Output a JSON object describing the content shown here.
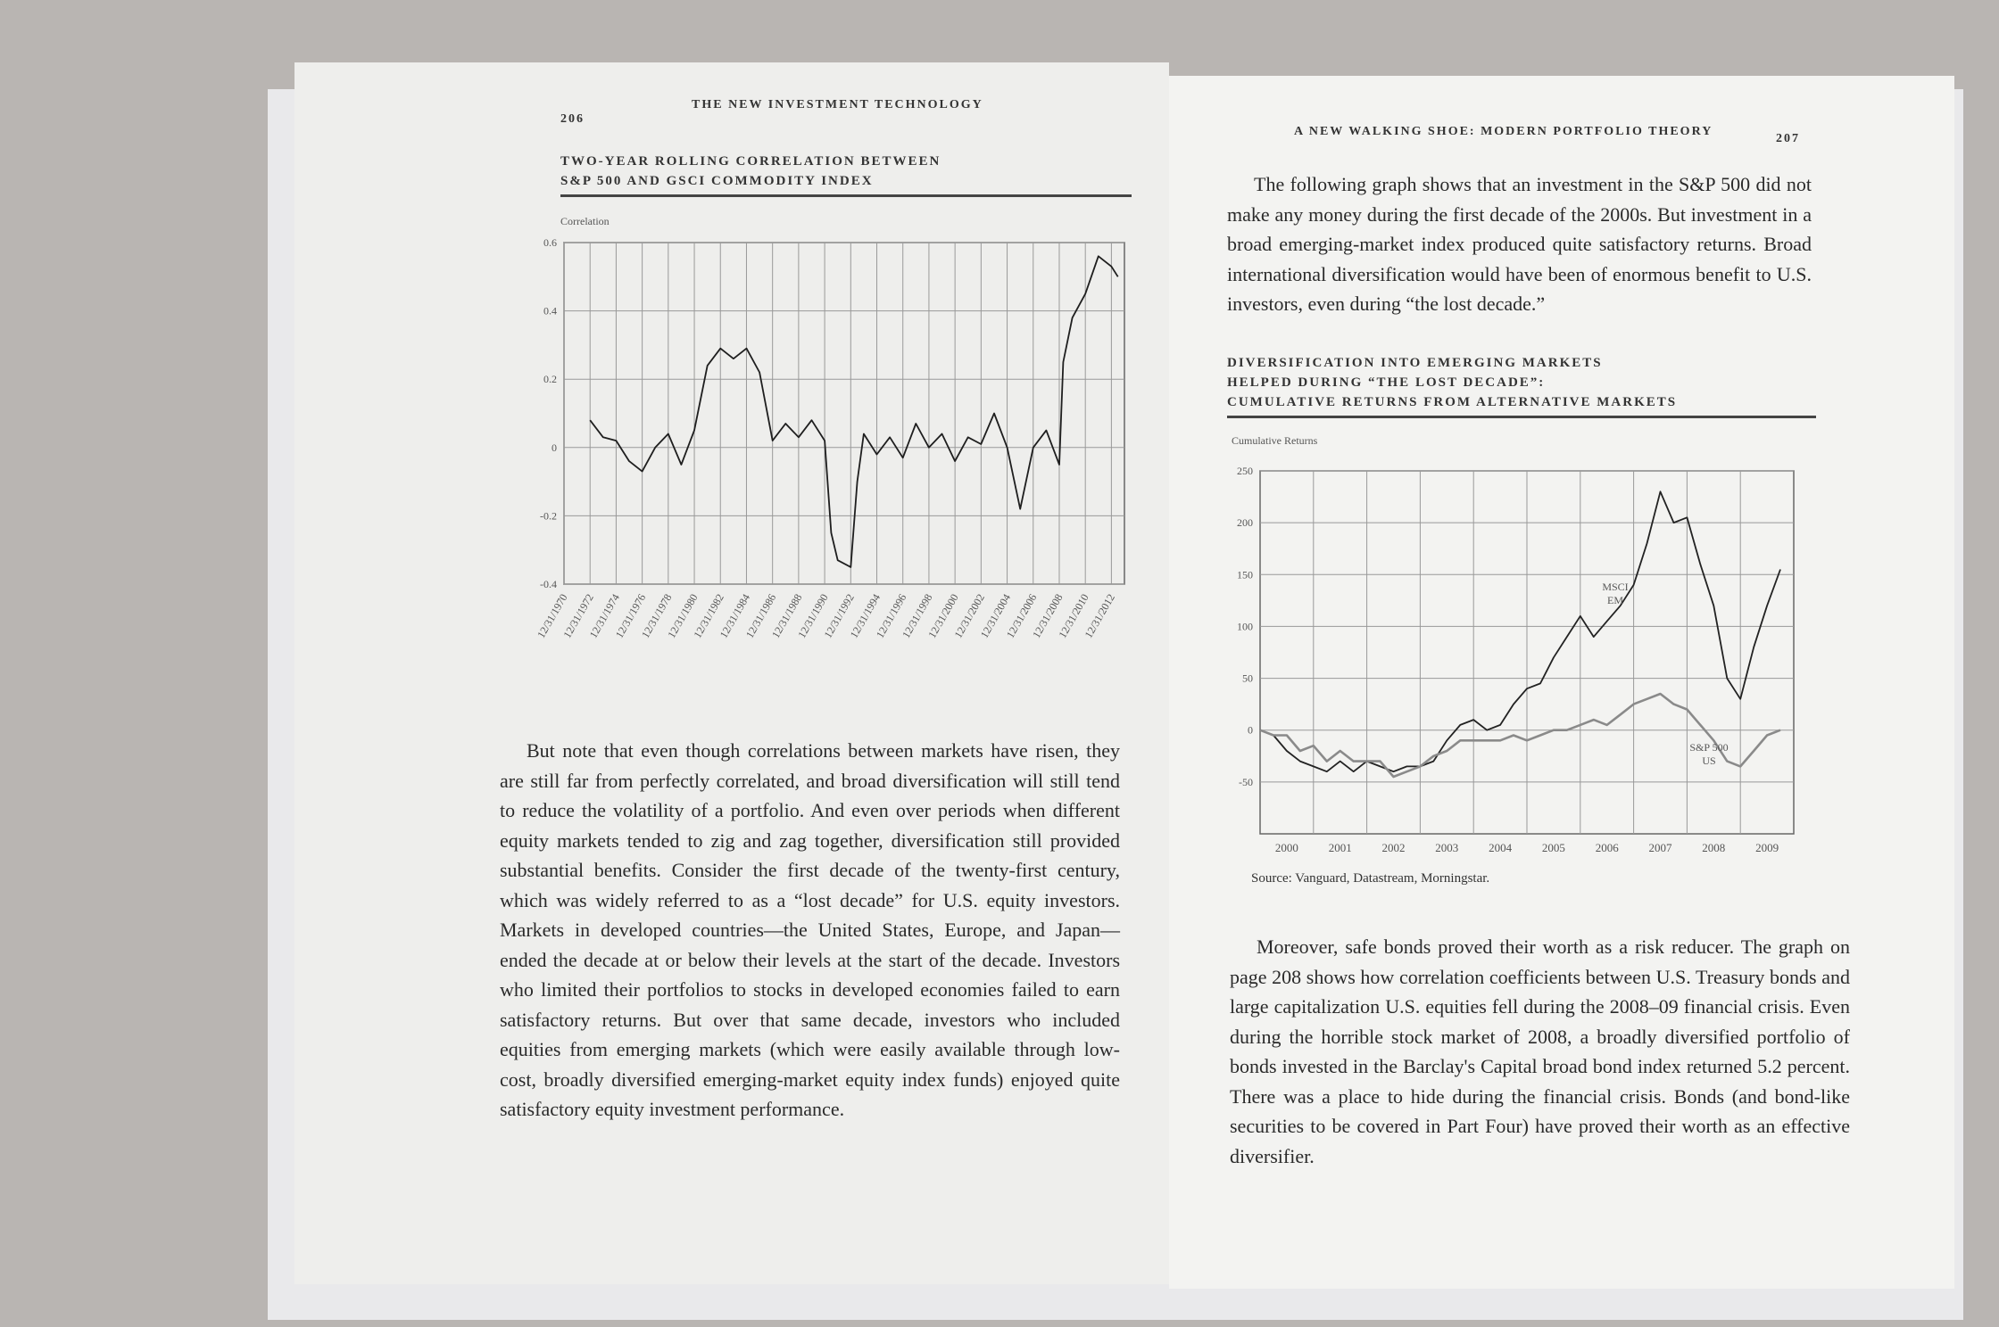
{
  "left_page": {
    "page_number": "206",
    "running_head": "THE NEW INVESTMENT TECHNOLOGY",
    "body": "But note that even though correlations between markets have risen, they are still far from perfectly correlated, and broad diversification will still tend to reduce the volatility of a portfolio. And even over periods when different equity markets tended to zig and zag together, diversification still provided substantial benefits. Consider the first decade of the twenty-first century, which was widely referred to as a “lost decade” for U.S. equity investors. Markets in developed countries—the United States, Europe, and Japan—ended the decade at or below their levels at the start of the decade. Investors who limited their portfolios to stocks in developed economies failed to earn satisfactory returns. But over that same decade, investors who included equities from emerging markets (which were easily available through low-cost, broadly diversified emerging-market equity index funds) enjoyed quite satisfactory equity investment performance."
  },
  "right_page": {
    "page_number": "207",
    "running_head": "A NEW WALKING SHOE: MODERN PORTFOLIO THEORY",
    "body_top": "The following graph shows that an investment in the S&P 500 did not make any money during the first decade of the 2000s. But investment in a broad emerging-market index produced quite satisfactory returns. Broad international diversification would have been of enormous benefit to U.S. investors, even during “the lost decade.”",
    "source": "Source: Vanguard, Datastream, Morningstar.",
    "body_bottom": "Moreover, safe bonds proved their worth as a risk reducer. The graph on page 208 shows how correlation coefficients between U.S. Treasury bonds and large capitalization U.S. equities fell during the 2008–09 financial crisis. Even during the horrible stock market of 2008, a broadly diversified portfolio of bonds invested in the Barclay's Capital broad bond index returned 5.2 percent. There was a place to hide during the financial crisis. Bonds (and bond-like securities to be covered in Part Four) have proved their worth as an effective diversifier."
  },
  "chart_data": [
    {
      "type": "line",
      "title": [
        "TWO-YEAR ROLLING CORRELATION BETWEEN",
        "S&P 500 AND GSCI COMMODITY INDEX"
      ],
      "y_label": "Correlation",
      "x": [
        1972,
        1973,
        1974,
        1975,
        1976,
        1977,
        1978,
        1979,
        1980,
        1981,
        1982,
        1983,
        1984,
        1985,
        1986,
        1987,
        1988,
        1989,
        1990,
        1990.5,
        1991,
        1992,
        1992.5,
        1993,
        1994,
        1995,
        1996,
        1997,
        1998,
        1999,
        2000,
        2001,
        2002,
        2003,
        2004,
        2005,
        2006,
        2007,
        2008,
        2008.3,
        2009,
        2010,
        2011,
        2012,
        2012.5
      ],
      "values": [
        0.08,
        0.03,
        0.02,
        -0.04,
        -0.07,
        0.0,
        0.04,
        -0.05,
        0.05,
        0.24,
        0.29,
        0.26,
        0.29,
        0.22,
        0.02,
        0.07,
        0.03,
        0.08,
        0.02,
        -0.25,
        -0.33,
        -0.35,
        -0.1,
        0.04,
        -0.02,
        0.03,
        -0.03,
        0.07,
        0.0,
        0.04,
        -0.04,
        0.03,
        0.01,
        0.1,
        0.0,
        -0.18,
        0.0,
        0.05,
        -0.05,
        0.25,
        0.38,
        0.45,
        0.56,
        0.53,
        0.5
      ],
      "color": "#1e1e1e",
      "xlim": [
        1970,
        2013
      ],
      "xticks": [
        {
          "value": 1970,
          "label": "12/31/1970"
        },
        {
          "value": 1972,
          "label": "12/31/1972"
        },
        {
          "value": 1974,
          "label": "12/31/1974"
        },
        {
          "value": 1976,
          "label": "12/31/1976"
        },
        {
          "value": 1978,
          "label": "12/31/1978"
        },
        {
          "value": 1980,
          "label": "12/31/1980"
        },
        {
          "value": 1982,
          "label": "12/31/1982"
        },
        {
          "value": 1984,
          "label": "12/31/1984"
        },
        {
          "value": 1986,
          "label": "12/31/1986"
        },
        {
          "value": 1988,
          "label": "12/31/1988"
        },
        {
          "value": 1990,
          "label": "12/31/1990"
        },
        {
          "value": 1992,
          "label": "12/31/1992"
        },
        {
          "value": 1994,
          "label": "12/31/1994"
        },
        {
          "value": 1996,
          "label": "12/31/1996"
        },
        {
          "value": 1998,
          "label": "12/31/1998"
        },
        {
          "value": 2000,
          "label": "12/31/2000"
        },
        {
          "value": 2002,
          "label": "12/31/2002"
        },
        {
          "value": 2004,
          "label": "12/31/2004"
        },
        {
          "value": 2006,
          "label": "12/31/2006"
        },
        {
          "value": 2008,
          "label": "12/31/2008"
        },
        {
          "value": 2010,
          "label": "12/31/2010"
        },
        {
          "value": 2012,
          "label": "12/31/2012"
        }
      ],
      "ylim": [
        -0.4,
        0.6
      ],
      "yticks": [
        -0.4,
        -0.2,
        0,
        0.2,
        0.4,
        0.6
      ],
      "grid": true
    },
    {
      "type": "line",
      "title": [
        "DIVERSIFICATION INTO EMERGING MARKETS",
        "HELPED DURING “THE LOST DECADE”:",
        "CUMULATIVE RETURNS FROM ALTERNATIVE MARKETS"
      ],
      "y_label": "Cumulative Returns",
      "categories": [
        "2000",
        "2001",
        "2002",
        "2003",
        "2004",
        "2005",
        "2006",
        "2007",
        "2008",
        "2009"
      ],
      "x": [
        2000,
        2000.25,
        2000.5,
        2000.75,
        2001,
        2001.25,
        2001.5,
        2001.75,
        2002,
        2002.25,
        2002.5,
        2002.75,
        2003,
        2003.25,
        2003.5,
        2003.75,
        2004,
        2004.25,
        2004.5,
        2004.75,
        2005,
        2005.25,
        2005.5,
        2005.75,
        2006,
        2006.25,
        2006.5,
        2006.75,
        2007,
        2007.25,
        2007.5,
        2007.75,
        2008,
        2008.25,
        2008.5,
        2008.75,
        2009,
        2009.25,
        2009.5,
        2009.75
      ],
      "series": [
        {
          "name": "MSCI EM",
          "color": "#222222",
          "values": [
            0,
            -5,
            -20,
            -30,
            -35,
            -40,
            -30,
            -40,
            -30,
            -35,
            -40,
            -35,
            -35,
            -30,
            -10,
            5,
            10,
            0,
            5,
            25,
            40,
            45,
            70,
            90,
            110,
            90,
            105,
            120,
            140,
            180,
            230,
            200,
            205,
            160,
            120,
            50,
            30,
            80,
            120,
            155
          ]
        },
        {
          "name": "S&P 500 US",
          "color": "#8a8a8a",
          "values": [
            0,
            -5,
            -5,
            -20,
            -15,
            -30,
            -20,
            -30,
            -30,
            -30,
            -45,
            -40,
            -35,
            -25,
            -20,
            -10,
            -10,
            -10,
            -10,
            -5,
            -10,
            -5,
            0,
            0,
            5,
            10,
            5,
            15,
            25,
            30,
            35,
            25,
            20,
            5,
            -10,
            -30,
            -35,
            -20,
            -5,
            0
          ]
        }
      ],
      "xlim": [
        2000,
        2010
      ],
      "ylim": [
        -100,
        250
      ],
      "yticks": [
        -50,
        0,
        50,
        100,
        150,
        200,
        250
      ],
      "grid": true
    }
  ]
}
